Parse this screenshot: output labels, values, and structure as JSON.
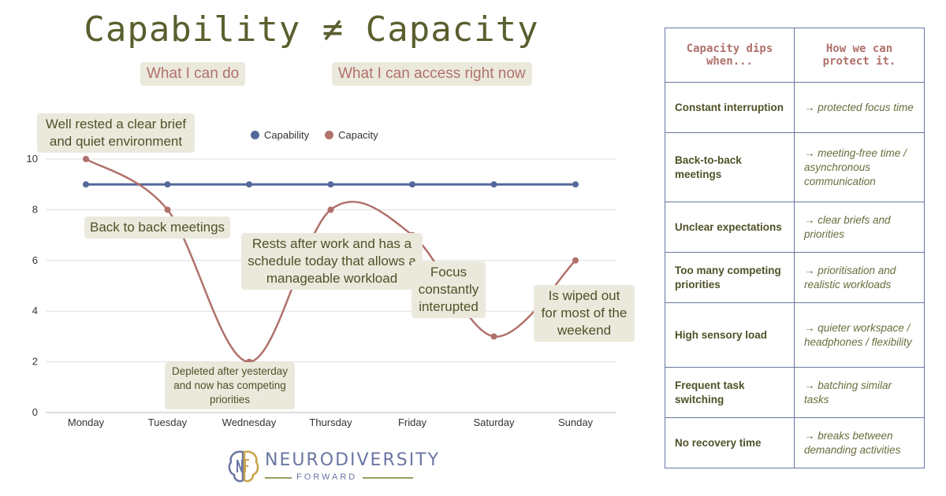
{
  "title": "Capability ≠ Capacity",
  "labels": {
    "capability_label": "What I can do",
    "capacity_label": "What I can access right now"
  },
  "annotations": {
    "monday": "Well rested a clear brief and quiet environment",
    "tuesday": "Back to back meetings",
    "wednesday": "Depleted after yesterday and now has competing priorities",
    "thursday": "Rests after work and has a schedule today that allows a manageable workload",
    "friday": "Focus constantly interupted",
    "sunday": "Is wiped out for most of the weekend"
  },
  "legend": {
    "capability": "Capability",
    "capacity": "Capacity"
  },
  "colors": {
    "capability": "#55689a",
    "capacity": "#b0716b",
    "accent_text": "#5b5e2e",
    "pill_bg": "#ebe9dc"
  },
  "chart_data": {
    "type": "line",
    "categories": [
      "Monday",
      "Tuesday",
      "Wednesday",
      "Thursday",
      "Friday",
      "Saturday",
      "Sunday"
    ],
    "series": [
      {
        "name": "Capability",
        "values": [
          9,
          9,
          9,
          9,
          9,
          9,
          9
        ]
      },
      {
        "name": "Capacity",
        "values": [
          10,
          8,
          2,
          8,
          7,
          3,
          6
        ]
      }
    ],
    "y_ticks": [
      0,
      2,
      4,
      6,
      8,
      10
    ],
    "ylim": [
      0,
      10
    ],
    "grid": true,
    "legend_position": "top"
  },
  "table": {
    "headers": [
      "Capacity dips when...",
      "How we can protect it."
    ],
    "rows": [
      [
        "Constant interruption",
        "→ protected focus time"
      ],
      [
        "Back-to-back meetings",
        "→ meeting-free time / asynchronous communication"
      ],
      [
        "Unclear expectations",
        "→ clear briefs and priorities"
      ],
      [
        "Too many competing priorities",
        "→ prioritisation and realistic workloads"
      ],
      [
        "High sensory load",
        "→ quieter workspace / headphones / flexibility"
      ],
      [
        "Frequent task switching",
        "→ batching similar tasks"
      ],
      [
        "No recovery time",
        "→ breaks between demanding activities"
      ]
    ]
  },
  "logo": {
    "name": "NEURODIVERSITY",
    "sub": "FORWARD"
  }
}
